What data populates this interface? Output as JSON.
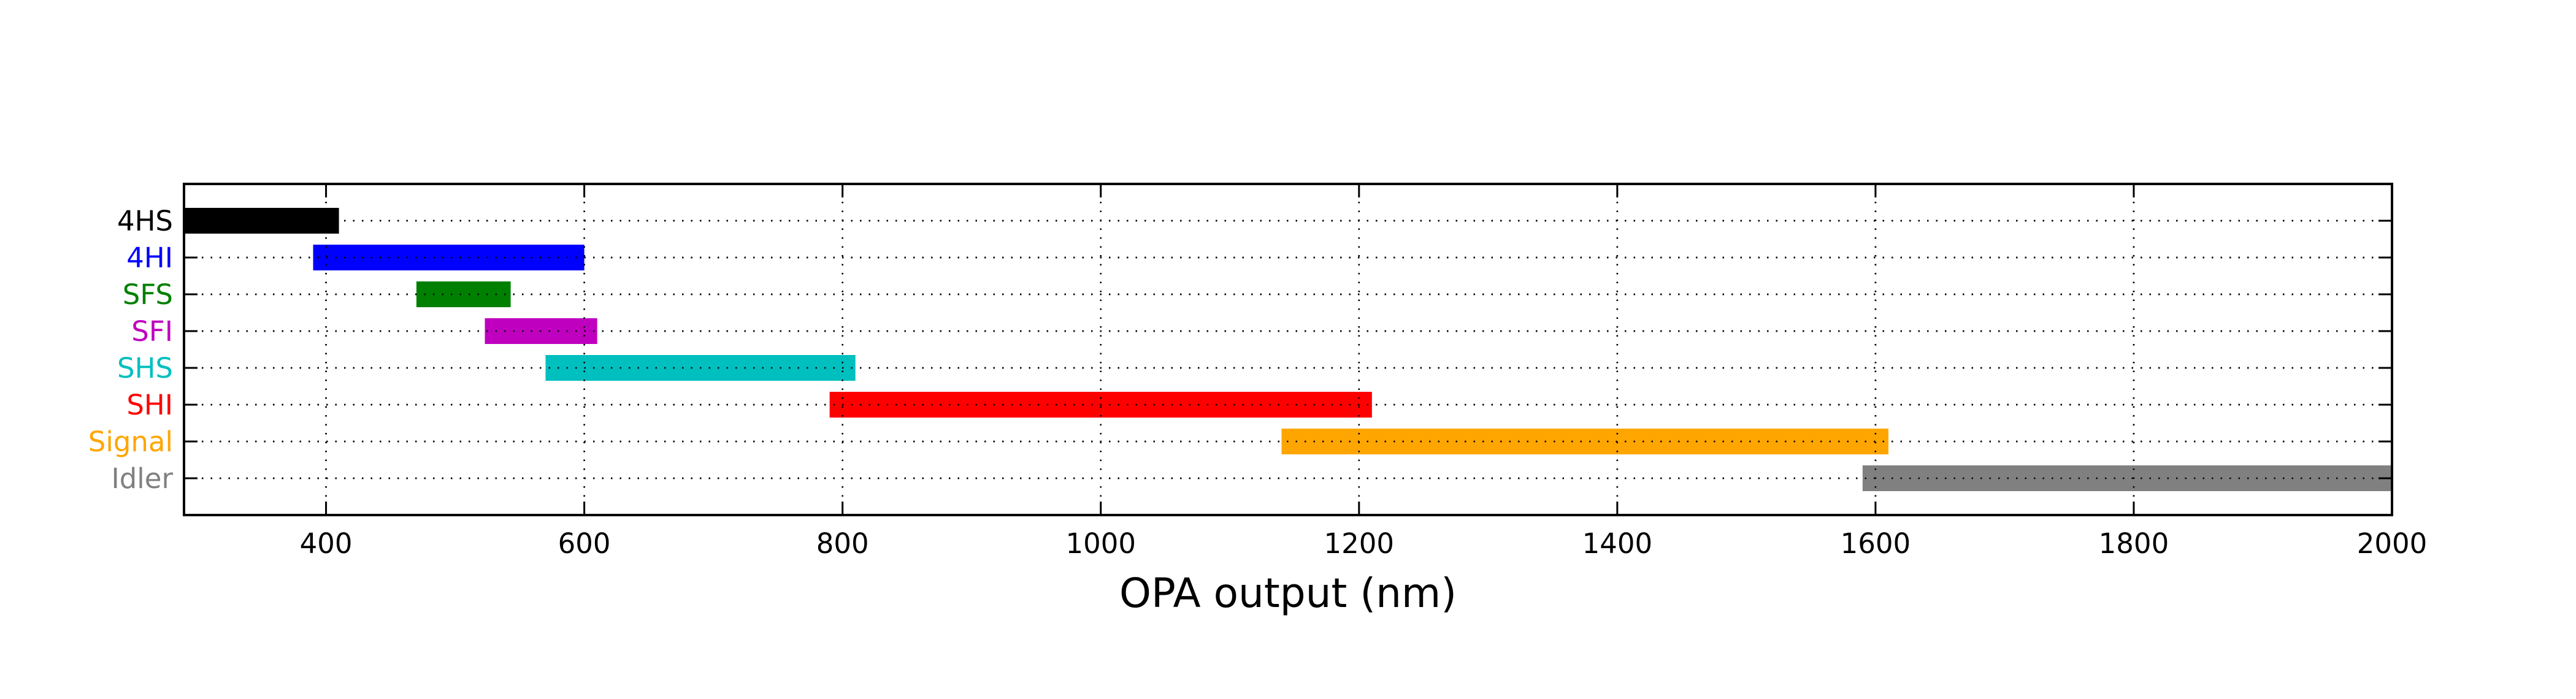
{
  "chart_data": {
    "type": "bar",
    "orientation": "horizontal-range",
    "title": "",
    "xlabel": "OPA output (nm)",
    "ylabel": "",
    "xlim": [
      290,
      2000
    ],
    "xticks": [
      400,
      600,
      800,
      1000,
      1200,
      1400,
      1600,
      1800,
      2000
    ],
    "grid": true,
    "categories": [
      "4HS",
      "4HI",
      "SFS",
      "SFI",
      "SHS",
      "SHI",
      "Signal",
      "Idler"
    ],
    "series": [
      {
        "label": "4HS",
        "start": 290,
        "end": 410,
        "color": "#000000"
      },
      {
        "label": "4HI",
        "start": 390,
        "end": 600,
        "color": "#0000ff"
      },
      {
        "label": "SFS",
        "start": 470,
        "end": 543,
        "color": "#008000"
      },
      {
        "label": "SFI",
        "start": 523,
        "end": 610,
        "color": "#bf00bf"
      },
      {
        "label": "SHS",
        "start": 570,
        "end": 810,
        "color": "#00bfbf"
      },
      {
        "label": "SHI",
        "start": 790,
        "end": 1210,
        "color": "#ff0000"
      },
      {
        "label": "Signal",
        "start": 1140,
        "end": 1610,
        "color": "#ffa500"
      },
      {
        "label": "Idler",
        "start": 1590,
        "end": 2000,
        "color": "#808080"
      }
    ]
  }
}
